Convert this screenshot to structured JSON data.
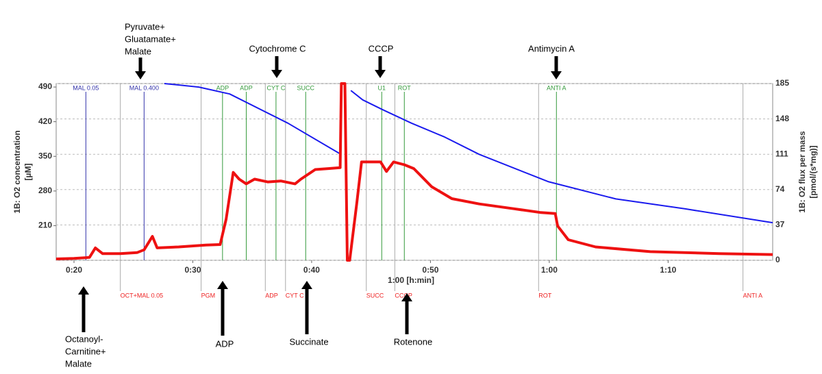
{
  "chart_data": {
    "type": "line",
    "xlabel": "1:00 [h:min]",
    "ylabel": [
      "1B: O2 concentration",
      "[µM]"
    ],
    "y2label": [
      "1B: O2 flux per mass",
      "[pmol/(s*mg)]"
    ],
    "xlim": [
      18.5,
      78.8
    ],
    "xticks": [
      {
        "value": 20,
        "label": "0:20"
      },
      {
        "value": 30,
        "label": "0:30"
      },
      {
        "value": 40,
        "label": "0:40"
      },
      {
        "value": 50,
        "label": "0:50"
      },
      {
        "value": 60,
        "label": "1:00"
      },
      {
        "value": 70,
        "label": "1:10"
      }
    ],
    "ylim": [
      140,
      497
    ],
    "yticks": [
      210,
      280,
      350,
      420,
      490
    ],
    "y2lim": [
      0,
      185
    ],
    "y2ticks": [
      0,
      37,
      74,
      111,
      148,
      185
    ],
    "grid": true,
    "series": [
      {
        "name": "1B: O2 concentration",
        "color": "#1a1aee",
        "axis": "y",
        "x": [
          27.6,
          30.5,
          33.1,
          38.0,
          42.4,
          42.9,
          43.3,
          44.3,
          46.0,
          48.4,
          51.2,
          54.1,
          59.9,
          65.6,
          71.4,
          78.8
        ],
        "values": [
          497,
          490,
          476,
          417,
          355,
          null,
          483,
          464,
          444,
          417,
          389,
          354,
          299,
          264,
          244,
          216
        ]
      },
      {
        "name": "1B: O2 flux per mass",
        "color": "#ee1111",
        "axis": "y2",
        "x": [
          18.5,
          20.0,
          21.3,
          21.8,
          22.4,
          23.9,
          25.3,
          25.9,
          26.6,
          27.0,
          28.8,
          31.1,
          32.3,
          32.8,
          33.4,
          33.9,
          34.5,
          35.2,
          36.3,
          37.4,
          38.6,
          39.1,
          40.3,
          41.4,
          42.4,
          42.5,
          42.8,
          43.0,
          43.2,
          43.8,
          44.2,
          45.8,
          46.3,
          46.9,
          47.8,
          48.6,
          50.1,
          51.8,
          54.1,
          57.0,
          59.3,
          60.5,
          60.7,
          61.6,
          63.9,
          68.5,
          74.3,
          78.8
        ],
        "values": [
          1.4,
          2,
          3,
          13,
          7,
          7,
          8,
          11,
          25,
          13,
          14,
          16,
          16.5,
          43,
          92,
          85,
          80,
          85,
          82,
          83,
          80,
          85,
          95,
          96,
          97,
          185,
          185,
          0,
          0,
          60,
          103,
          103,
          93,
          103,
          100,
          96,
          77,
          64.5,
          59,
          54,
          50,
          49,
          36,
          21.5,
          14,
          9,
          7,
          6
        ]
      }
    ],
    "events": [
      {
        "label": "MAL 0.05",
        "t": 21.0,
        "row": "top",
        "color": "#3333aa"
      },
      {
        "label": "MAL 0.400",
        "t": 25.9,
        "row": "top",
        "color": "#3333aa"
      },
      {
        "label": "ADP",
        "t": 32.5,
        "row": "top",
        "color": "#33993a"
      },
      {
        "label": "ADP",
        "t": 34.5,
        "row": "top",
        "color": "#33993a"
      },
      {
        "label": "CYT C",
        "t": 37.0,
        "row": "top",
        "color": "#33993a"
      },
      {
        "label": "SUCC",
        "t": 39.5,
        "row": "top",
        "color": "#33993a"
      },
      {
        "label": "U1",
        "t": 45.9,
        "row": "top",
        "color": "#33993a"
      },
      {
        "label": "ROT",
        "t": 47.8,
        "row": "top",
        "color": "#33993a"
      },
      {
        "label": "ANTI A",
        "t": 60.6,
        "row": "top",
        "color": "#33993a"
      },
      {
        "label": "OCT+MAL 0.05",
        "t": 23.9,
        "row": "bottom",
        "color": "#ee2222"
      },
      {
        "label": "PGM",
        "t": 30.7,
        "row": "bottom",
        "color": "#ee2222"
      },
      {
        "label": "ADP",
        "t": 36.1,
        "row": "bottom",
        "color": "#ee2222"
      },
      {
        "label": "CYT C",
        "t": 37.8,
        "row": "bottom",
        "color": "#ee2222"
      },
      {
        "label": "SUCC",
        "t": 44.6,
        "row": "bottom",
        "color": "#ee2222"
      },
      {
        "label": "CCCP",
        "t": 47.0,
        "row": "bottom",
        "color": "#ee2222"
      },
      {
        "label": "ROT",
        "t": 59.1,
        "row": "bottom",
        "color": "#ee2222"
      },
      {
        "label": "ANTI A",
        "t": 76.3,
        "row": "bottom",
        "color": "#ee2222"
      }
    ]
  },
  "annotations": [
    {
      "lines": [
        "Pyruvate+",
        "Gluatamate+",
        "Malate"
      ]
    },
    {
      "lines": [
        "Cytochrome C"
      ]
    },
    {
      "lines": [
        "CCCP"
      ]
    },
    {
      "lines": [
        "Antimycin A"
      ]
    },
    {
      "lines": [
        "Octanoyl-",
        "Carnitine+",
        "Malate"
      ]
    },
    {
      "lines": [
        "ADP"
      ]
    },
    {
      "lines": [
        "Succinate"
      ]
    },
    {
      "lines": [
        "Rotenone"
      ]
    }
  ]
}
